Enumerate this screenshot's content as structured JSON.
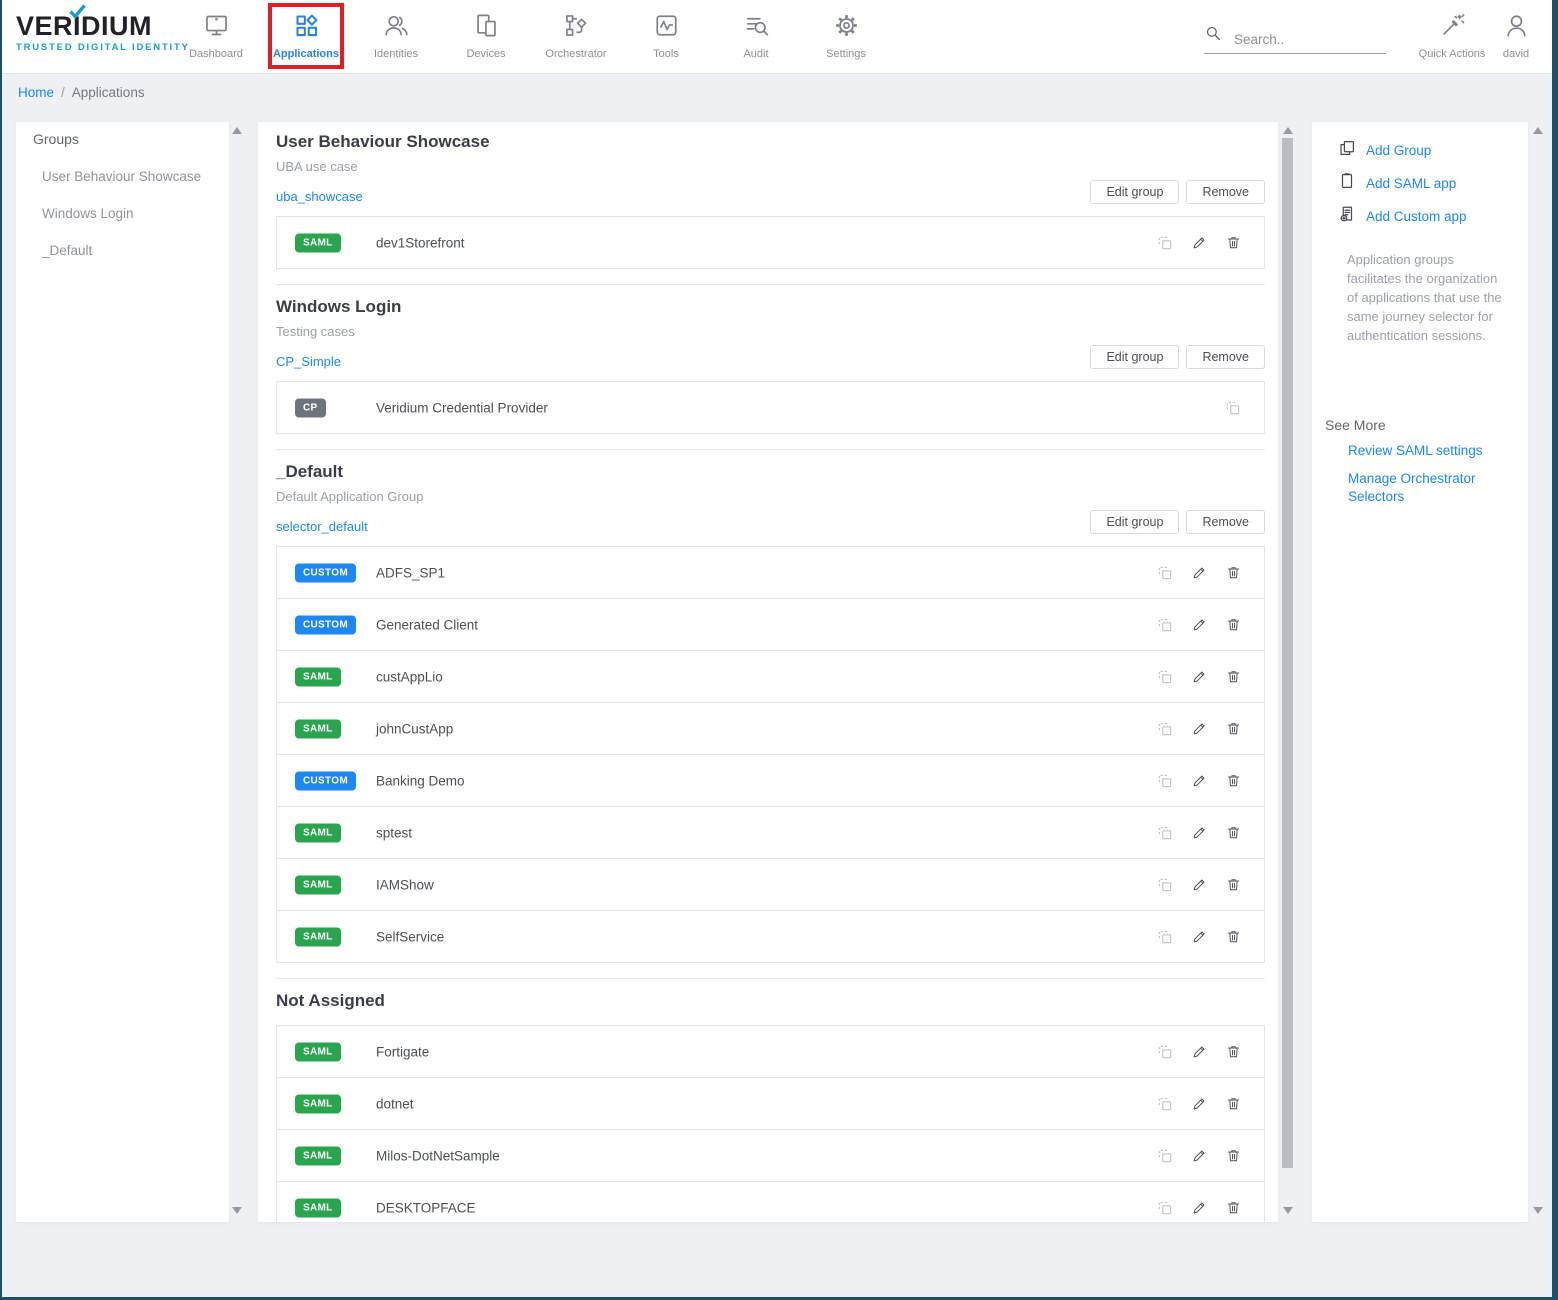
{
  "header": {
    "brand": "VERIDIUM",
    "tagline": "TRUSTED DIGITAL IDENTITY",
    "search_placeholder": "Search..",
    "quick_actions_label": "Quick Actions",
    "user_name": "david"
  },
  "nav": {
    "items": [
      {
        "label": "Dashboard",
        "active": false
      },
      {
        "label": "Applications",
        "active": true
      },
      {
        "label": "Identities",
        "active": false
      },
      {
        "label": "Devices",
        "active": false
      },
      {
        "label": "Orchestrator",
        "active": false
      },
      {
        "label": "Tools",
        "active": false
      },
      {
        "label": "Audit",
        "active": false
      },
      {
        "label": "Settings",
        "active": false
      }
    ]
  },
  "breadcrumb": {
    "home": "Home",
    "separator": "/",
    "current": "Applications"
  },
  "sidebar": {
    "title": "Groups",
    "items": [
      "User Behaviour Showcase",
      "Windows Login",
      "_Default"
    ]
  },
  "main": {
    "buttons": {
      "edit_group": "Edit group",
      "remove": "Remove"
    },
    "badge_colors": {
      "SAML": "#2aa44e",
      "CUSTOM": "#1e87f0",
      "CP": "#6d747c"
    },
    "groups": [
      {
        "title": "User Behaviour Showcase",
        "subtitle": "UBA use case",
        "selector": "uba_showcase",
        "has_header_actions": true,
        "apps": [
          {
            "badge": "SAML",
            "name": "dev1Storefront",
            "actions": [
              "duplicate",
              "edit",
              "delete"
            ]
          }
        ]
      },
      {
        "title": "Windows Login",
        "subtitle": "Testing cases",
        "selector": "CP_Simple",
        "has_header_actions": true,
        "apps": [
          {
            "badge": "CP",
            "name": "Veridium Credential Provider",
            "actions": [
              "duplicate"
            ]
          }
        ]
      },
      {
        "title": "_Default",
        "subtitle": "Default Application Group",
        "selector": "selector_default",
        "has_header_actions": true,
        "apps": [
          {
            "badge": "CUSTOM",
            "name": "ADFS_SP1",
            "actions": [
              "duplicate",
              "edit",
              "delete"
            ]
          },
          {
            "badge": "CUSTOM",
            "name": "Generated Client",
            "actions": [
              "duplicate",
              "edit",
              "delete"
            ]
          },
          {
            "badge": "SAML",
            "name": "custAppLio",
            "actions": [
              "duplicate",
              "edit",
              "delete"
            ]
          },
          {
            "badge": "SAML",
            "name": "johnCustApp",
            "actions": [
              "duplicate",
              "edit",
              "delete"
            ]
          },
          {
            "badge": "CUSTOM",
            "name": "Banking Demo",
            "actions": [
              "duplicate",
              "edit",
              "delete"
            ]
          },
          {
            "badge": "SAML",
            "name": "sptest",
            "actions": [
              "duplicate",
              "edit",
              "delete"
            ]
          },
          {
            "badge": "SAML",
            "name": "IAMShow",
            "actions": [
              "duplicate",
              "edit",
              "delete"
            ]
          },
          {
            "badge": "SAML",
            "name": "SelfService",
            "actions": [
              "duplicate",
              "edit",
              "delete"
            ]
          }
        ]
      },
      {
        "title": "Not Assigned",
        "subtitle": "",
        "selector": "",
        "has_header_actions": false,
        "apps": [
          {
            "badge": "SAML",
            "name": "Fortigate",
            "actions": [
              "duplicate",
              "edit",
              "delete"
            ]
          },
          {
            "badge": "SAML",
            "name": "dotnet",
            "actions": [
              "duplicate",
              "edit",
              "delete"
            ]
          },
          {
            "badge": "SAML",
            "name": "Milos-DotNetSample",
            "actions": [
              "duplicate",
              "edit",
              "delete"
            ]
          },
          {
            "badge": "SAML",
            "name": "DESKTOPFACE",
            "actions": [
              "duplicate",
              "edit",
              "delete"
            ]
          }
        ]
      }
    ]
  },
  "rightbar": {
    "actions": [
      {
        "label": "Add Group",
        "icon": "add-group-icon"
      },
      {
        "label": "Add SAML app",
        "icon": "add-saml-app-icon"
      },
      {
        "label": "Add Custom app",
        "icon": "add-custom-app-icon"
      }
    ],
    "description": "Application groups facilitates the organization of applications that use the same journey selector for authentication sessions.",
    "see_more": {
      "title": "See More",
      "links": [
        "Review SAML settings",
        "Manage Orchestrator Selectors"
      ]
    }
  },
  "colors": {
    "link_blue": "#1e87f0",
    "highlight_red": "#e11d25",
    "brand_teal": "#1a9dc9",
    "edge_navy": "#1d4f6b"
  }
}
